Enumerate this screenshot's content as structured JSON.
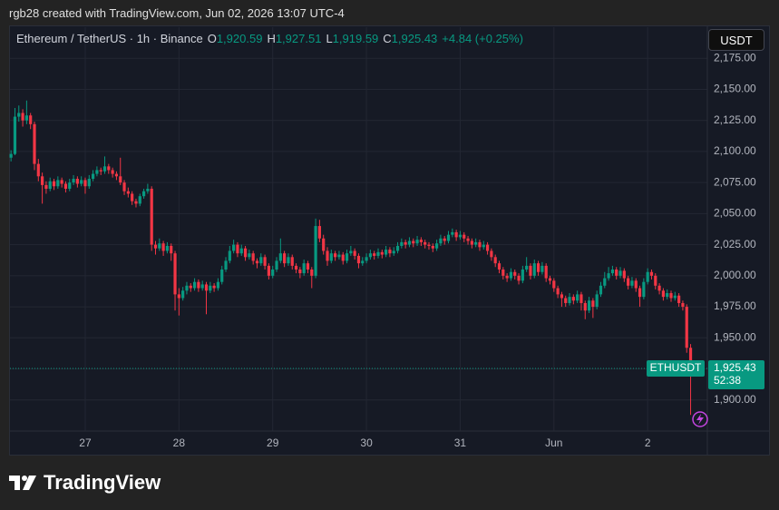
{
  "header": {
    "attribution": "rgb28 created with TradingView.com, Jun 02, 2026 13:07 UTC-4"
  },
  "chart_data": {
    "type": "candlestick",
    "title": "Ethereum / TetherUS · 1h · Binance",
    "legend": [
      {
        "key": "O",
        "value": "1,920.59"
      },
      {
        "key": "H",
        "value": "1,927.51"
      },
      {
        "key": "L",
        "value": "1,919.59"
      },
      {
        "key": "C",
        "value": "1,925.43"
      }
    ],
    "change": "+4.84 (+0.25%)",
    "currency": "USDT",
    "symbol_tag": "ETHUSDT",
    "price_label": "1,925.43",
    "countdown": "52:38",
    "up_color": "#089981",
    "down_color": "#f23645",
    "grid": true,
    "ylim": [
      1875,
      2200
    ],
    "yticks": [
      {
        "value": 1900,
        "label": "1,900.00"
      },
      {
        "value": 1925,
        "label": "1,925.00"
      },
      {
        "value": 1950,
        "label": "1,950.00"
      },
      {
        "value": 1975,
        "label": "1,975.00"
      },
      {
        "value": 2000,
        "label": "2,000.00"
      },
      {
        "value": 2025,
        "label": "2,025.00"
      },
      {
        "value": 2050,
        "label": "2,050.00"
      },
      {
        "value": 2075,
        "label": "2,075.00"
      },
      {
        "value": 2100,
        "label": "2,100.00"
      },
      {
        "value": 2125,
        "label": "2,125.00"
      },
      {
        "value": 2150,
        "label": "2,150.00"
      },
      {
        "value": 2175,
        "label": "2,175.00"
      }
    ],
    "categories": [
      null,
      null,
      null,
      null,
      null,
      null,
      null,
      null,
      null,
      null,
      null,
      null,
      null,
      null,
      null,
      null,
      null,
      null,
      null,
      "27",
      null,
      null,
      null,
      null,
      null,
      null,
      null,
      null,
      null,
      null,
      null,
      null,
      null,
      null,
      null,
      null,
      null,
      null,
      null,
      null,
      null,
      null,
      null,
      "28",
      null,
      null,
      null,
      null,
      null,
      null,
      null,
      null,
      null,
      null,
      null,
      null,
      null,
      null,
      null,
      null,
      null,
      null,
      null,
      null,
      null,
      null,
      null,
      "29",
      null,
      null,
      null,
      null,
      null,
      null,
      null,
      null,
      null,
      null,
      null,
      null,
      null,
      null,
      null,
      null,
      null,
      null,
      null,
      null,
      null,
      null,
      null,
      "30",
      null,
      null,
      null,
      null,
      null,
      null,
      null,
      null,
      null,
      null,
      null,
      null,
      null,
      null,
      null,
      null,
      null,
      null,
      null,
      null,
      null,
      null,
      null,
      "31",
      null,
      null,
      null,
      null,
      null,
      null,
      null,
      null,
      null,
      null,
      null,
      null,
      null,
      null,
      null,
      null,
      null,
      null,
      null,
      null,
      null,
      null,
      null,
      "Jun",
      null,
      null,
      null,
      null,
      null,
      null,
      null,
      null,
      null,
      null,
      null,
      null,
      null,
      null,
      null,
      null,
      null,
      null,
      null,
      null,
      null,
      null,
      null,
      "2",
      null,
      null,
      null,
      null,
      null,
      null,
      null,
      null,
      null,
      null,
      null,
      null
    ],
    "ohlc": [
      [
        2095,
        2101,
        2092,
        2098
      ],
      [
        2098,
        2135,
        2097,
        2128
      ],
      [
        2128,
        2137,
        2124,
        2131
      ],
      [
        2131,
        2134,
        2120,
        2125
      ],
      [
        2125,
        2141,
        2122,
        2129
      ],
      [
        2129,
        2131,
        2118,
        2122
      ],
      [
        2122,
        2124,
        2085,
        2090
      ],
      [
        2090,
        2094,
        2076,
        2080
      ],
      [
        2080,
        2083,
        2058,
        2073
      ],
      [
        2073,
        2076,
        2066,
        2070
      ],
      [
        2070,
        2079,
        2068,
        2076
      ],
      [
        2076,
        2078,
        2069,
        2072
      ],
      [
        2072,
        2080,
        2070,
        2077
      ],
      [
        2077,
        2079,
        2071,
        2074
      ],
      [
        2074,
        2076,
        2067,
        2070
      ],
      [
        2070,
        2078,
        2068,
        2075
      ],
      [
        2075,
        2081,
        2073,
        2078
      ],
      [
        2078,
        2080,
        2071,
        2074
      ],
      [
        2074,
        2080,
        2072,
        2077
      ],
      [
        2077,
        2079,
        2066,
        2072
      ],
      [
        2072,
        2081,
        2070,
        2078
      ],
      [
        2078,
        2085,
        2076,
        2082
      ],
      [
        2082,
        2088,
        2080,
        2085
      ],
      [
        2085,
        2087,
        2081,
        2084
      ],
      [
        2084,
        2096,
        2082,
        2088
      ],
      [
        2088,
        2090,
        2082,
        2085
      ],
      [
        2085,
        2087,
        2079,
        2082
      ],
      [
        2082,
        2084,
        2077,
        2080
      ],
      [
        2080,
        2095,
        2073,
        2075
      ],
      [
        2075,
        2077,
        2065,
        2068
      ],
      [
        2068,
        2071,
        2063,
        2066
      ],
      [
        2066,
        2068,
        2057,
        2060
      ],
      [
        2060,
        2062,
        2055,
        2058
      ],
      [
        2058,
        2066,
        2056,
        2064
      ],
      [
        2064,
        2070,
        2062,
        2068
      ],
      [
        2068,
        2074,
        2066,
        2070
      ],
      [
        2070,
        2072,
        2020,
        2025
      ],
      [
        2025,
        2028,
        2017,
        2022
      ],
      [
        2022,
        2030,
        2020,
        2026
      ],
      [
        2026,
        2028,
        2016,
        2020
      ],
      [
        2020,
        2027,
        2018,
        2024
      ],
      [
        2024,
        2026,
        2012,
        2018
      ],
      [
        2018,
        2020,
        1972,
        1985
      ],
      [
        1985,
        1990,
        1968,
        1982
      ],
      [
        1982,
        1991,
        1980,
        1988
      ],
      [
        1988,
        1995,
        1985,
        1992
      ],
      [
        1992,
        1994,
        1987,
        1990
      ],
      [
        1990,
        1998,
        1988,
        1995
      ],
      [
        1995,
        1997,
        1987,
        1990
      ],
      [
        1990,
        1996,
        1988,
        1993
      ],
      [
        1993,
        1995,
        1969,
        1988
      ],
      [
        1988,
        1995,
        1986,
        1992
      ],
      [
        1992,
        1994,
        1987,
        1990
      ],
      [
        1990,
        1998,
        1988,
        1995
      ],
      [
        1995,
        2008,
        1993,
        2005
      ],
      [
        2005,
        2015,
        2003,
        2012
      ],
      [
        2012,
        2024,
        2010,
        2020
      ],
      [
        2020,
        2029,
        2018,
        2025
      ],
      [
        2025,
        2027,
        2015,
        2018
      ],
      [
        2018,
        2025,
        2016,
        2022
      ],
      [
        2022,
        2024,
        2012,
        2015
      ],
      [
        2015,
        2021,
        2013,
        2018
      ],
      [
        2018,
        2020,
        2009,
        2012
      ],
      [
        2012,
        2014,
        2006,
        2010
      ],
      [
        2010,
        2018,
        2008,
        2015
      ],
      [
        2015,
        2017,
        2005,
        2008
      ],
      [
        2008,
        2010,
        1997,
        2000
      ],
      [
        2000,
        2008,
        1998,
        2005
      ],
      [
        2005,
        2015,
        2003,
        2012
      ],
      [
        2012,
        2030,
        2010,
        2018
      ],
      [
        2018,
        2020,
        2007,
        2010
      ],
      [
        2010,
        2018,
        2008,
        2015
      ],
      [
        2015,
        2017,
        2005,
        2008
      ],
      [
        2008,
        2010,
        2002,
        2005
      ],
      [
        2005,
        2007,
        1998,
        2002
      ],
      [
        2002,
        2013,
        2000,
        2010
      ],
      [
        2010,
        2012,
        2002,
        2005
      ],
      [
        2005,
        2007,
        1990,
        2000
      ],
      [
        2000,
        2046,
        1998,
        2040
      ],
      [
        2040,
        2045,
        2027,
        2030
      ],
      [
        2030,
        2033,
        2017,
        2020
      ],
      [
        2020,
        2023,
        2008,
        2012
      ],
      [
        2012,
        2021,
        2010,
        2018
      ],
      [
        2018,
        2020,
        2012,
        2015
      ],
      [
        2015,
        2020,
        2013,
        2017
      ],
      [
        2017,
        2019,
        2009,
        2012
      ],
      [
        2012,
        2021,
        2010,
        2018
      ],
      [
        2018,
        2024,
        2016,
        2020
      ],
      [
        2020,
        2022,
        2013,
        2016
      ],
      [
        2016,
        2018,
        2006,
        2010
      ],
      [
        2010,
        2015,
        2008,
        2012
      ],
      [
        2012,
        2018,
        2010,
        2015
      ],
      [
        2015,
        2021,
        2013,
        2018
      ],
      [
        2018,
        2020,
        2013,
        2016
      ],
      [
        2016,
        2022,
        2014,
        2019
      ],
      [
        2019,
        2021,
        2014,
        2017
      ],
      [
        2017,
        2024,
        2015,
        2021
      ],
      [
        2021,
        2023,
        2015,
        2018
      ],
      [
        2018,
        2023,
        2016,
        2020
      ],
      [
        2020,
        2027,
        2018,
        2024
      ],
      [
        2024,
        2030,
        2022,
        2027
      ],
      [
        2027,
        2029,
        2022,
        2025
      ],
      [
        2025,
        2031,
        2023,
        2028
      ],
      [
        2028,
        2030,
        2023,
        2026
      ],
      [
        2026,
        2032,
        2024,
        2029
      ],
      [
        2029,
        2031,
        2024,
        2027
      ],
      [
        2027,
        2029,
        2022,
        2025
      ],
      [
        2025,
        2027,
        2021,
        2024
      ],
      [
        2024,
        2026,
        2019,
        2022
      ],
      [
        2022,
        2029,
        2020,
        2026
      ],
      [
        2026,
        2033,
        2024,
        2030
      ],
      [
        2030,
        2032,
        2025,
        2028
      ],
      [
        2028,
        2036,
        2026,
        2033
      ],
      [
        2033,
        2038,
        2031,
        2035
      ],
      [
        2035,
        2037,
        2028,
        2031
      ],
      [
        2031,
        2036,
        2029,
        2033
      ],
      [
        2033,
        2035,
        2027,
        2030
      ],
      [
        2030,
        2032,
        2025,
        2028
      ],
      [
        2028,
        2030,
        2022,
        2025
      ],
      [
        2025,
        2030,
        2023,
        2027
      ],
      [
        2027,
        2029,
        2020,
        2023
      ],
      [
        2023,
        2028,
        2021,
        2025
      ],
      [
        2025,
        2027,
        2017,
        2020
      ],
      [
        2020,
        2022,
        2012,
        2015
      ],
      [
        2015,
        2017,
        2007,
        2010
      ],
      [
        2010,
        2012,
        2002,
        2005
      ],
      [
        2005,
        2007,
        1997,
        2000
      ],
      [
        2000,
        2002,
        1995,
        1998
      ],
      [
        1998,
        2006,
        1996,
        2003
      ],
      [
        2003,
        2005,
        1997,
        2000
      ],
      [
        2000,
        2002,
        1993,
        1996
      ],
      [
        1996,
        2008,
        1994,
        2005
      ],
      [
        2005,
        2015,
        2003,
        2008
      ],
      [
        2008,
        2010,
        1997,
        2000
      ],
      [
        2000,
        2013,
        1998,
        2010
      ],
      [
        2010,
        2012,
        2000,
        2003
      ],
      [
        2003,
        2011,
        2001,
        2008
      ],
      [
        2008,
        2010,
        1995,
        1998
      ],
      [
        1998,
        2000,
        1993,
        1996
      ],
      [
        1996,
        1998,
        1987,
        1990
      ],
      [
        1990,
        1992,
        1982,
        1985
      ],
      [
        1985,
        1987,
        1975,
        1982
      ],
      [
        1982,
        1984,
        1975,
        1978
      ],
      [
        1978,
        1986,
        1976,
        1983
      ],
      [
        1983,
        1985,
        1977,
        1980
      ],
      [
        1980,
        1988,
        1978,
        1985
      ],
      [
        1985,
        1987,
        1972,
        1978
      ],
      [
        1978,
        1980,
        1965,
        1972
      ],
      [
        1972,
        1983,
        1970,
        1980
      ],
      [
        1980,
        1982,
        1966,
        1975
      ],
      [
        1975,
        1988,
        1973,
        1985
      ],
      [
        1985,
        1995,
        1983,
        1992
      ],
      [
        1992,
        2003,
        1990,
        1998
      ],
      [
        1998,
        2007,
        1996,
        2002
      ],
      [
        2002,
        2008,
        2000,
        2005
      ],
      [
        2005,
        2007,
        1997,
        2000
      ],
      [
        2000,
        2007,
        1998,
        2004
      ],
      [
        2004,
        2006,
        1995,
        1998
      ],
      [
        1998,
        2000,
        1989,
        1992
      ],
      [
        1992,
        1999,
        1990,
        1996
      ],
      [
        1996,
        1998,
        1987,
        1990
      ],
      [
        1990,
        1992,
        1975,
        1983
      ],
      [
        1983,
        1998,
        1981,
        1995
      ],
      [
        1995,
        2006,
        1993,
        2003
      ],
      [
        2003,
        2005,
        1997,
        2000
      ],
      [
        2000,
        2002,
        1989,
        1992
      ],
      [
        1992,
        1994,
        1985,
        1988
      ],
      [
        1988,
        1990,
        1980,
        1983
      ],
      [
        1983,
        1989,
        1981,
        1986
      ],
      [
        1986,
        1988,
        1979,
        1982
      ],
      [
        1982,
        1987,
        1980,
        1984
      ],
      [
        1984,
        1986,
        1975,
        1978
      ],
      [
        1978,
        1980,
        1972,
        1975
      ],
      [
        1975,
        1977,
        1938,
        1942
      ],
      [
        1942,
        1945,
        1888,
        1920.59
      ],
      [
        1920.59,
        1927.51,
        1919.59,
        1925.43
      ]
    ]
  },
  "footer": {
    "logo": "TradingView"
  }
}
